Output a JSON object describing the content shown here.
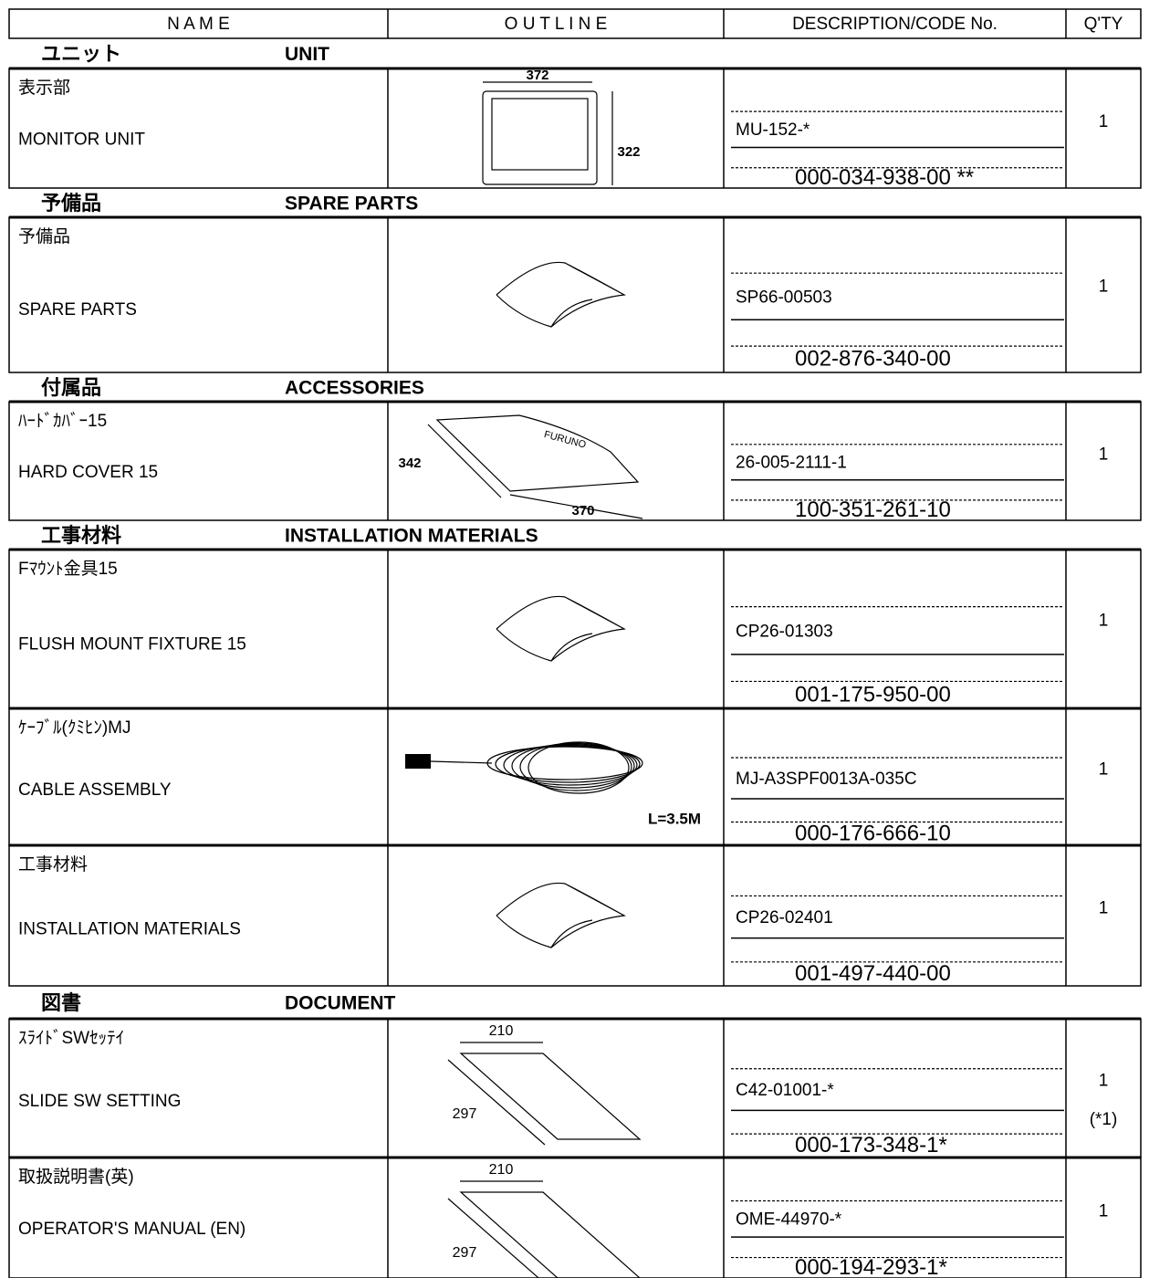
{
  "header": {
    "name": "N A M E",
    "outline": "O U T L I N E",
    "description": "DESCRIPTION/CODE No.",
    "qty": "Q'TY"
  },
  "sections": [
    {
      "jp": "ユニット",
      "en": "UNIT",
      "items": [
        {
          "name_jp": "表示部",
          "name_en": "MONITOR UNIT",
          "outline_labels": [
            "372",
            "322"
          ],
          "type": "MU-152-*",
          "code": "000-034-938-00 **",
          "qty": 1
        }
      ]
    },
    {
      "jp": "予備品",
      "en": "SPARE PARTS",
      "items": [
        {
          "name_jp": "予備品",
          "name_en": "SPARE PARTS",
          "outline_labels": [],
          "type": "SP66-00503",
          "code": "002-876-340-00",
          "qty": 1
        }
      ]
    },
    {
      "jp": "付属品",
      "en": "ACCESSORIES",
      "items": [
        {
          "name_jp": "ﾊｰﾄﾞｶﾊﾞｰ15",
          "name_en": "HARD COVER 15",
          "outline_labels": [
            "342",
            "FURUNO",
            "370"
          ],
          "type": "26-005-2111-1",
          "code": "100-351-261-10",
          "qty": 1
        }
      ]
    },
    {
      "jp": "工事材料",
      "en": "INSTALLATION MATERIALS",
      "items": [
        {
          "name_jp": "Fﾏｳﾝﾄ金具15",
          "name_en": "FLUSH MOUNT FIXTURE 15",
          "outline_labels": [],
          "type": "CP26-01303",
          "code": "001-175-950-00",
          "qty": 1
        },
        {
          "name_jp": "ｹｰﾌﾞﾙ(ｸﾐﾋﾝ)MJ",
          "name_en": "CABLE ASSEMBLY",
          "outline_labels": [
            "L=3.5M"
          ],
          "type": "MJ-A3SPF0013A-035C",
          "code": "000-176-666-10",
          "qty": 1
        },
        {
          "name_jp": "工事材料",
          "name_en": "INSTALLATION MATERIALS",
          "outline_labels": [],
          "type": "CP26-02401",
          "code": "001-497-440-00",
          "qty": 1
        }
      ]
    },
    {
      "jp": "図書",
      "en": "DOCUMENT",
      "items": [
        {
          "name_jp": "ｽﾗｲﾄﾞSWｾｯﾃｲ",
          "name_en": "SLIDE SW SETTING",
          "outline_labels": [
            "210",
            "297"
          ],
          "type": "C42-01001-*",
          "code": "000-173-348-1*",
          "qty": 1,
          "note": "(*1)"
        },
        {
          "name_jp": "取扱説明書(英)",
          "name_en": "OPERATOR'S MANUAL (EN)",
          "outline_labels": [
            "210",
            "297"
          ],
          "type": "OME-44970-*",
          "code": "000-194-293-1*",
          "qty": 1
        }
      ]
    }
  ]
}
